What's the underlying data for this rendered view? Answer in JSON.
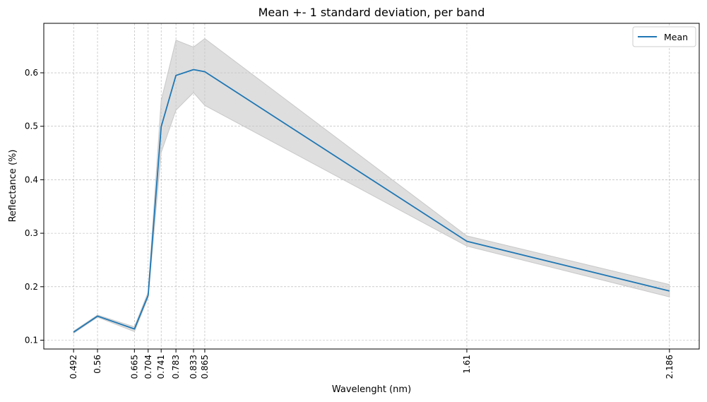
{
  "chart_data": {
    "type": "line",
    "title": "Mean +- 1 standard deviation, per band",
    "xlabel": "Wavelenght (nm)",
    "ylabel": "Reflectance (%)",
    "x": [
      0.492,
      0.56,
      0.665,
      0.704,
      0.741,
      0.783,
      0.833,
      0.865,
      1.61,
      2.186
    ],
    "x_tick_labels": [
      "0.492",
      "0.56",
      "0.665",
      "0.704",
      "0.741",
      "0.783",
      "0.833",
      "0.865",
      "1.61",
      "2.186"
    ],
    "series": [
      {
        "name": "Mean",
        "color": "#1f77b4",
        "values": [
          0.115,
          0.145,
          0.121,
          0.184,
          0.499,
          0.595,
          0.606,
          0.602,
          0.285,
          0.192
        ],
        "upper": [
          0.117,
          0.147,
          0.125,
          0.19,
          0.548,
          0.661,
          0.648,
          0.664,
          0.295,
          0.204
        ],
        "lower": [
          0.113,
          0.143,
          0.116,
          0.18,
          0.451,
          0.53,
          0.563,
          0.539,
          0.276,
          0.181
        ]
      }
    ],
    "band_color": "#c8c8c8",
    "xlim": [
      0.4073,
      2.2707
    ],
    "ylim": [
      0.0835,
      0.6925
    ],
    "y_ticks": [
      0.1,
      0.2,
      0.3,
      0.4,
      0.5,
      0.6
    ],
    "y_tick_labels": [
      "0.1",
      "0.2",
      "0.3",
      "0.4",
      "0.5",
      "0.6"
    ],
    "grid": true,
    "legend": "top-right"
  }
}
